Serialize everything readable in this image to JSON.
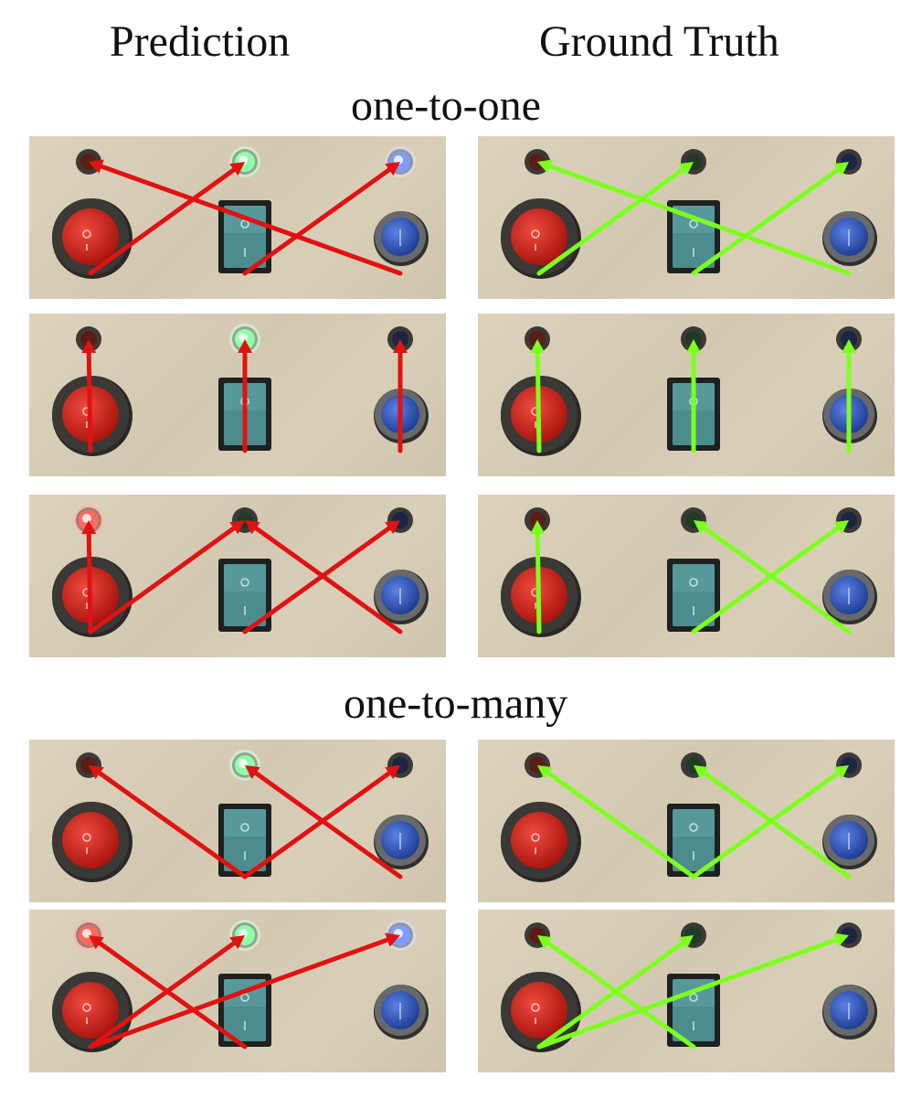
{
  "headers": {
    "prediction": "Prediction",
    "ground_truth": "Ground Truth"
  },
  "sections": {
    "one_to_one": "one-to-one",
    "one_to_many": "one-to-many"
  },
  "colors": {
    "prediction_arrow": "#e01212",
    "ground_truth_arrow": "#7dff1f",
    "panel_background": "#d8ceb7",
    "red_button": "#c81a12",
    "blue_button": "#2b52b8",
    "rocker_switch": "#4d8c8e"
  },
  "controls": [
    "red-button",
    "rocker-switch",
    "blue-button"
  ],
  "indicator_lights": [
    "red-light",
    "green-light",
    "blue-light"
  ],
  "rows": [
    {
      "section": "one-to-one",
      "prediction": {
        "lit": [
          "green-light",
          "blue-light"
        ],
        "connections": [
          [
            "red-button",
            "green-light"
          ],
          [
            "rocker-switch",
            "blue-light"
          ],
          [
            "blue-button",
            "red-light"
          ]
        ]
      },
      "ground_truth": {
        "connections": [
          [
            "red-button",
            "green-light"
          ],
          [
            "rocker-switch",
            "blue-light"
          ],
          [
            "blue-button",
            "red-light"
          ]
        ]
      }
    },
    {
      "section": "one-to-one",
      "prediction": {
        "lit": [
          "green-light"
        ],
        "connections": [
          [
            "red-button",
            "red-light"
          ],
          [
            "rocker-switch",
            "green-light"
          ],
          [
            "blue-button",
            "blue-light"
          ]
        ]
      },
      "ground_truth": {
        "connections": [
          [
            "red-button",
            "red-light"
          ],
          [
            "rocker-switch",
            "green-light"
          ],
          [
            "blue-button",
            "blue-light"
          ]
        ]
      }
    },
    {
      "section": "one-to-one",
      "prediction": {
        "lit": [
          "red-light"
        ],
        "connections": [
          [
            "red-button",
            "red-light"
          ],
          [
            "red-button",
            "green-light"
          ],
          [
            "rocker-switch",
            "blue-light"
          ],
          [
            "blue-button",
            "green-light"
          ]
        ]
      },
      "ground_truth": {
        "connections": [
          [
            "red-button",
            "red-light"
          ],
          [
            "rocker-switch",
            "blue-light"
          ],
          [
            "blue-button",
            "green-light"
          ]
        ]
      }
    },
    {
      "section": "one-to-many",
      "prediction": {
        "lit": [
          "green-light"
        ],
        "connections": [
          [
            "rocker-switch",
            "red-light"
          ],
          [
            "rocker-switch",
            "blue-light"
          ],
          [
            "blue-button",
            "green-light"
          ]
        ]
      },
      "ground_truth": {
        "connections": [
          [
            "rocker-switch",
            "red-light"
          ],
          [
            "rocker-switch",
            "blue-light"
          ],
          [
            "blue-button",
            "green-light"
          ]
        ]
      }
    },
    {
      "section": "one-to-many",
      "prediction": {
        "lit": [
          "red-light",
          "green-light",
          "blue-light"
        ],
        "connections": [
          [
            "red-button",
            "green-light"
          ],
          [
            "red-button",
            "blue-light"
          ],
          [
            "rocker-switch",
            "red-light"
          ]
        ]
      },
      "ground_truth": {
        "connections": [
          [
            "red-button",
            "green-light"
          ],
          [
            "red-button",
            "blue-light"
          ],
          [
            "rocker-switch",
            "red-light"
          ]
        ]
      }
    }
  ]
}
